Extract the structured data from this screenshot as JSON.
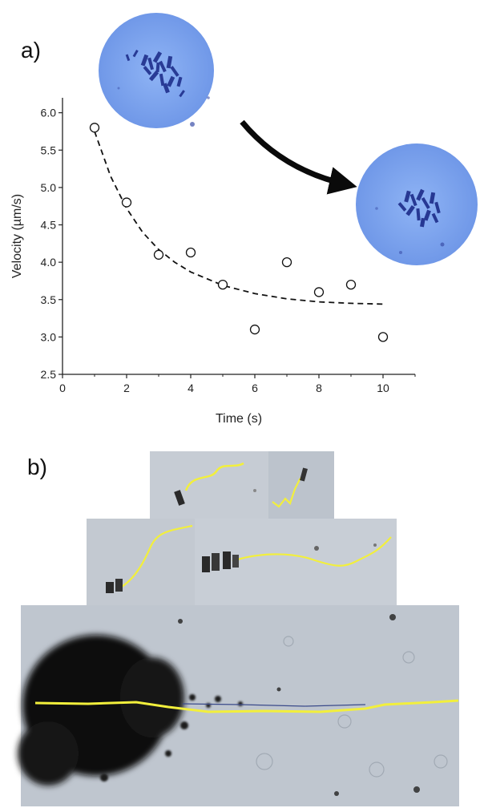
{
  "panel_a_label": "a)",
  "panel_b_label": "b)",
  "colors": {
    "circle_bg": "#7ea6ef",
    "crystal": "#1f2f8c",
    "trajectory": "#f2ef3c",
    "micrograph_bg": "#c9cfd6",
    "dark_crystal": "#111111"
  },
  "chart_data": {
    "type": "scatter",
    "xlabel": "Time (s)",
    "ylabel": "Velocity (µm/s)",
    "xlim": [
      0,
      11
    ],
    "ylim": [
      2.5,
      6.2
    ],
    "x_ticks": [
      0,
      2,
      4,
      6,
      8,
      10
    ],
    "y_ticks": [
      2.5,
      3.0,
      3.5,
      4.0,
      4.5,
      5.0,
      5.5,
      6.0
    ],
    "x_tick_labels": [
      "0",
      "2",
      "4",
      "6",
      "8",
      "10"
    ],
    "y_tick_labels": [
      "2.5",
      "3.0",
      "3.5",
      "4.0",
      "4.5",
      "5.0",
      "5.5",
      "6.0"
    ],
    "series": [
      {
        "x": [
          1,
          2,
          3,
          4,
          5,
          6,
          7,
          8,
          9,
          10
        ],
        "y": [
          5.8,
          4.8,
          4.1,
          4.13,
          3.7,
          3.1,
          4.0,
          3.6,
          3.7,
          3.0
        ],
        "marker": "open-circle"
      }
    ],
    "fit": {
      "style": "dashed",
      "x": [
        1,
        1.5,
        2,
        2.5,
        3,
        3.5,
        4,
        5,
        6,
        7,
        8,
        9,
        10
      ],
      "y": [
        5.75,
        5.15,
        4.72,
        4.4,
        4.17,
        4.0,
        3.87,
        3.69,
        3.58,
        3.51,
        3.47,
        3.45,
        3.44
      ]
    },
    "grid": false
  }
}
